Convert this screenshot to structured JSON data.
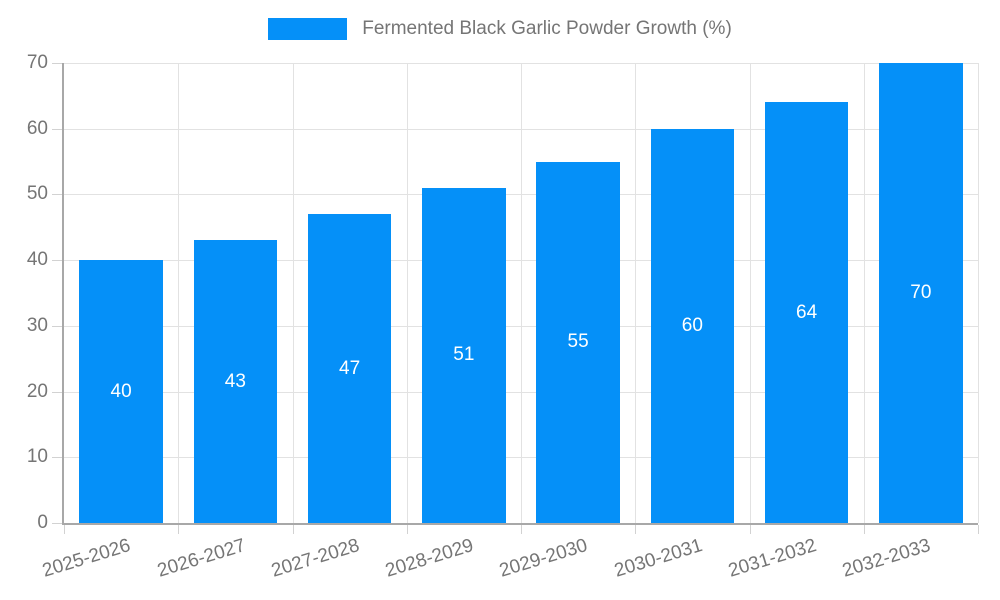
{
  "legend": {
    "label": "Fermented Black Garlic Powder Growth (%)"
  },
  "colors": {
    "bar": "#0590f8",
    "grid": "#e2e2e2",
    "axis": "#a8a8a8",
    "tick": "#d2d2d2",
    "text": "#757575",
    "value_label": "#ffffff",
    "background": "#ffffff"
  },
  "chart_data": {
    "type": "bar",
    "title": "Fermented Black Garlic Powder Growth (%)",
    "categories": [
      "2025-2026",
      "2026-2027",
      "2027-2028",
      "2028-2029",
      "2029-2030",
      "2030-2031",
      "2031-2032",
      "2032-2033"
    ],
    "values": [
      40,
      43,
      47,
      51,
      55,
      60,
      64,
      70
    ],
    "xlabel": "",
    "ylabel": "",
    "ylim": [
      0,
      70
    ],
    "ytick_step": 10,
    "yticks": [
      0,
      10,
      20,
      30,
      40,
      50,
      60,
      70
    ],
    "grid": true,
    "legend_position": "top-center",
    "value_labels_shown": true
  }
}
